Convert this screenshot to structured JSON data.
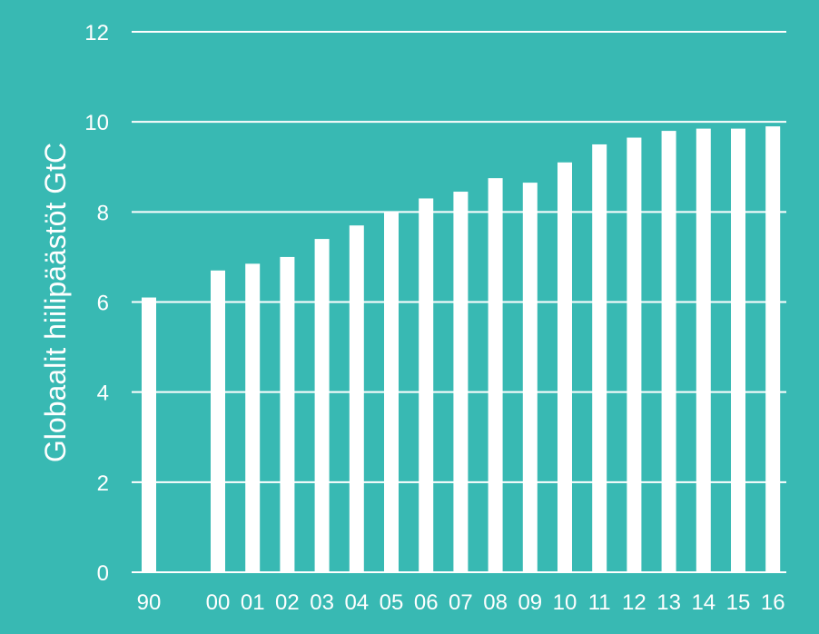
{
  "chart_data": {
    "type": "bar",
    "ylabel": "Globaalit hiilipäästöt GtC",
    "xlabel": "",
    "ylim": [
      0,
      12
    ],
    "yticks": [
      0,
      2,
      4,
      6,
      8,
      10,
      12
    ],
    "grid": true,
    "categories": [
      "90",
      "00",
      "01",
      "02",
      "03",
      "04",
      "05",
      "06",
      "07",
      "08",
      "09",
      "10",
      "11",
      "12",
      "13",
      "14",
      "15",
      "16"
    ],
    "values": [
      6.1,
      6.7,
      6.85,
      7.0,
      7.4,
      7.7,
      8.0,
      8.3,
      8.45,
      8.75,
      8.65,
      9.1,
      9.5,
      9.65,
      9.8,
      9.85,
      9.85,
      9.9
    ],
    "colors": {
      "background": "#38b9b3",
      "bars": "#ffffff",
      "grid": "#ffffff"
    }
  }
}
